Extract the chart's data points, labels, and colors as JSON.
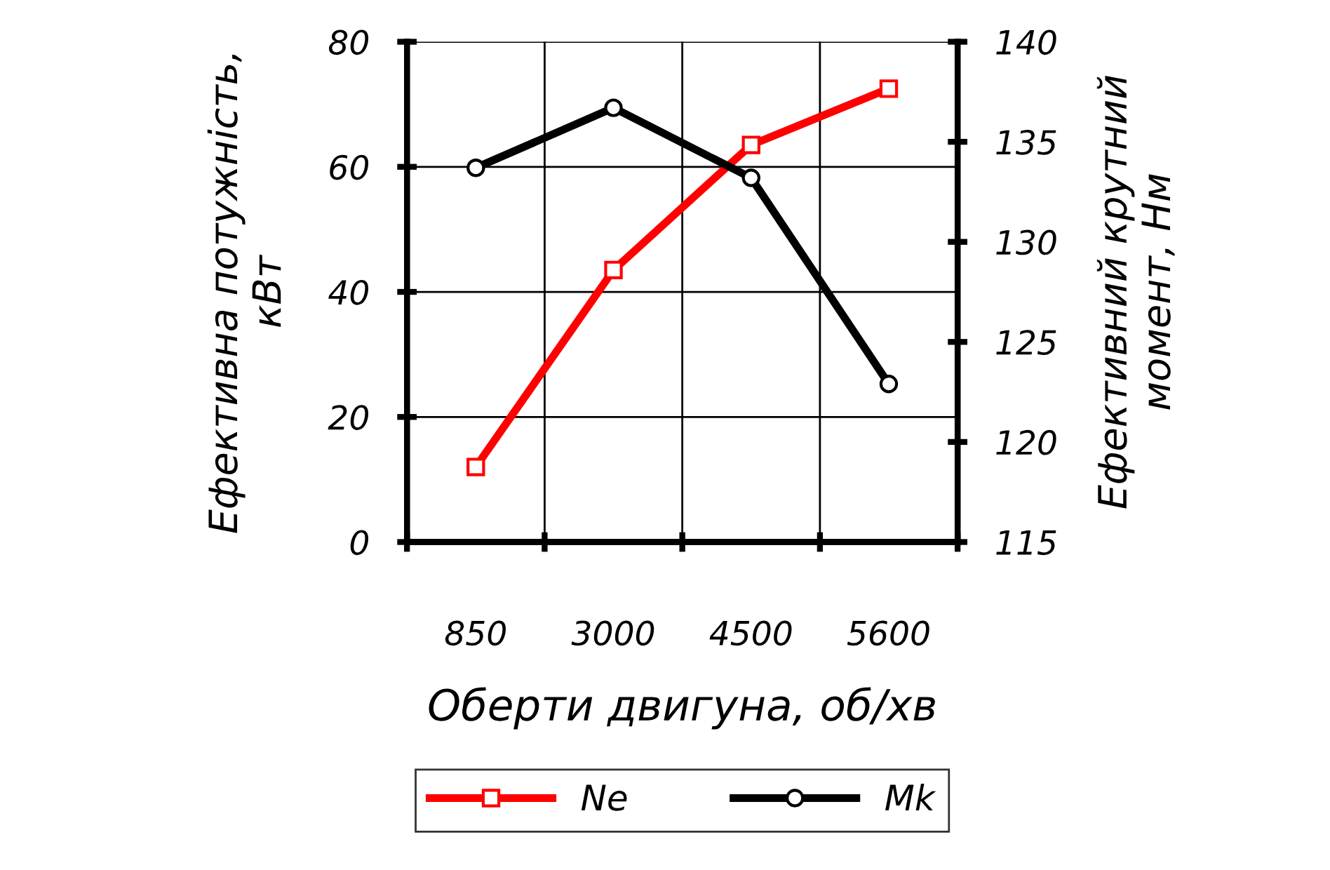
{
  "chart_data": {
    "type": "line",
    "xlabel": "Оберти двигуна, об/хв",
    "ylabel": "Ефективна потужність,\nкВт",
    "y2label": "Ефективний крутний\nмомент, Нм",
    "categories": [
      "850",
      "3000",
      "4500",
      "5600"
    ],
    "series": [
      {
        "name": "Ne",
        "color": "#ff0000",
        "marker": "square",
        "values": [
          12,
          43.5,
          63.5,
          72.5
        ]
      },
      {
        "name": "Mk",
        "color": "#000000",
        "marker": "circle",
        "axis": "y2",
        "values": [
          133.7,
          136.7,
          133.2,
          122.9
        ]
      }
    ],
    "ylim": [
      0,
      80
    ],
    "yticks": [
      0,
      20,
      40,
      60,
      80
    ],
    "y2lim": [
      115,
      140
    ],
    "y2ticks": [
      115,
      120,
      125,
      130,
      135,
      140
    ],
    "grid": true,
    "legend": "bottom",
    "line_style": "solid"
  }
}
